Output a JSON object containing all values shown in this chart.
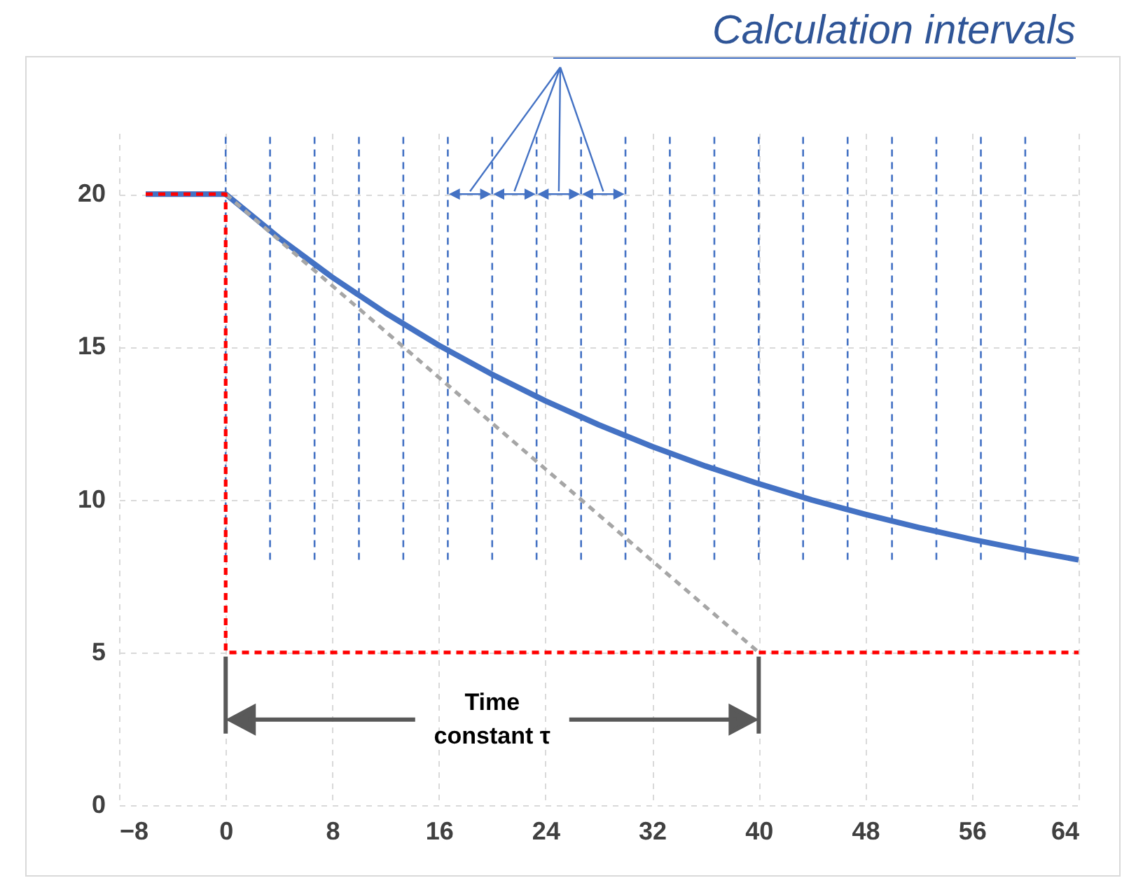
{
  "chart_data": {
    "type": "line",
    "xlim": [
      -8,
      64
    ],
    "xticks": [
      -8,
      0,
      8,
      16,
      24,
      32,
      40,
      48,
      56,
      64
    ],
    "ylim": [
      0,
      22
    ],
    "yticks": [
      0,
      5,
      10,
      15,
      20
    ],
    "grid": true,
    "series": [
      {
        "color": "#4472c4",
        "line_style": "solid",
        "x": [
          -6,
          0,
          4,
          8,
          12,
          16,
          20,
          24,
          28,
          32,
          36,
          40,
          44,
          48,
          52,
          56,
          60,
          64
        ],
        "values": [
          20,
          20,
          18.57,
          17.28,
          16.11,
          15.05,
          14.1,
          13.23,
          12.45,
          11.74,
          11.1,
          10.52,
          9.99,
          9.52,
          9.09,
          8.7,
          8.35,
          8.03
        ]
      },
      {
        "color": "#a6a6a6",
        "line_style": "dashed",
        "x": [
          0,
          40
        ],
        "values": [
          20,
          5
        ]
      },
      {
        "color": "#ff0000",
        "line_style": "dashed",
        "x": [
          -6,
          0,
          0,
          64
        ],
        "values": [
          20,
          20,
          5,
          5
        ]
      }
    ],
    "ref_lines": [
      {
        "axis": "x",
        "value": 0,
        "color": "#4472c4",
        "line_style": "dashed"
      },
      {
        "axis": "x",
        "value": 3.33,
        "color": "#4472c4",
        "line_style": "dashed"
      },
      {
        "axis": "x",
        "value": 6.67,
        "color": "#4472c4",
        "line_style": "dashed"
      },
      {
        "axis": "x",
        "value": 10,
        "color": "#4472c4",
        "line_style": "dashed"
      },
      {
        "axis": "x",
        "value": 13.33,
        "color": "#4472c4",
        "line_style": "dashed"
      },
      {
        "axis": "x",
        "value": 16.67,
        "color": "#4472c4",
        "line_style": "dashed"
      },
      {
        "axis": "x",
        "value": 20,
        "color": "#4472c4",
        "line_style": "dashed"
      },
      {
        "axis": "x",
        "value": 23.33,
        "color": "#4472c4",
        "line_style": "dashed"
      },
      {
        "axis": "x",
        "value": 26.67,
        "color": "#4472c4",
        "line_style": "dashed"
      },
      {
        "axis": "x",
        "value": 30,
        "color": "#4472c4",
        "line_style": "dashed"
      },
      {
        "axis": "x",
        "value": 33.33,
        "color": "#4472c4",
        "line_style": "dashed"
      },
      {
        "axis": "x",
        "value": 36.67,
        "color": "#4472c4",
        "line_style": "dashed"
      },
      {
        "axis": "x",
        "value": 40,
        "color": "#4472c4",
        "line_style": "dashed"
      },
      {
        "axis": "x",
        "value": 43.33,
        "color": "#4472c4",
        "line_style": "dashed"
      },
      {
        "axis": "x",
        "value": 46.67,
        "color": "#4472c4",
        "line_style": "dashed"
      },
      {
        "axis": "x",
        "value": 50,
        "color": "#4472c4",
        "line_style": "dashed"
      },
      {
        "axis": "x",
        "value": 53.33,
        "color": "#4472c4",
        "line_style": "dashed"
      },
      {
        "axis": "x",
        "value": 56.67,
        "color": "#4472c4",
        "line_style": "dashed"
      },
      {
        "axis": "x",
        "value": 60,
        "color": "#4472c4",
        "line_style": "dashed"
      }
    ],
    "annotations": [
      "Calculation intervals",
      "Time constant τ"
    ]
  }
}
